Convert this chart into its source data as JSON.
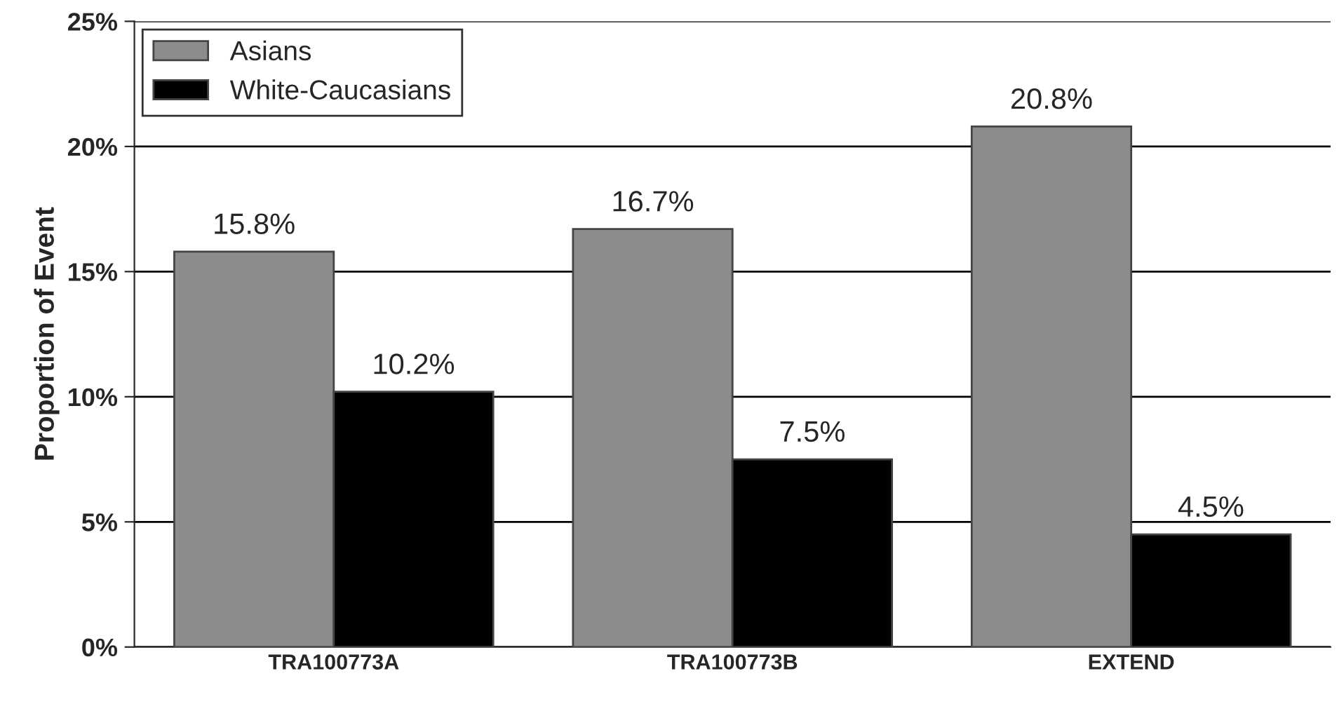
{
  "chart_data": {
    "type": "bar",
    "ylabel": "Proportion of Event",
    "categories": [
      "TRA100773A",
      "TRA100773B",
      "EXTEND"
    ],
    "series": [
      {
        "name": "Asians",
        "color": "#8c8c8c",
        "values": [
          15.8,
          16.7,
          20.8
        ],
        "value_labels": [
          "15.8%",
          "16.7%",
          "20.8%"
        ]
      },
      {
        "name": "White-Caucasians",
        "color": "#000000",
        "values": [
          10.2,
          7.5,
          4.5
        ],
        "value_labels": [
          "10.2%",
          "7.5%",
          "4.5%"
        ]
      }
    ],
    "ylim": [
      0,
      25
    ],
    "yticks": [
      {
        "value": 0,
        "label": "0%"
      },
      {
        "value": 5,
        "label": "5%"
      },
      {
        "value": 10,
        "label": "10%"
      },
      {
        "value": 15,
        "label": "15%"
      },
      {
        "value": 20,
        "label": "20%"
      },
      {
        "value": 25,
        "label": "25%"
      }
    ],
    "grid": "y",
    "legend": "top left"
  }
}
